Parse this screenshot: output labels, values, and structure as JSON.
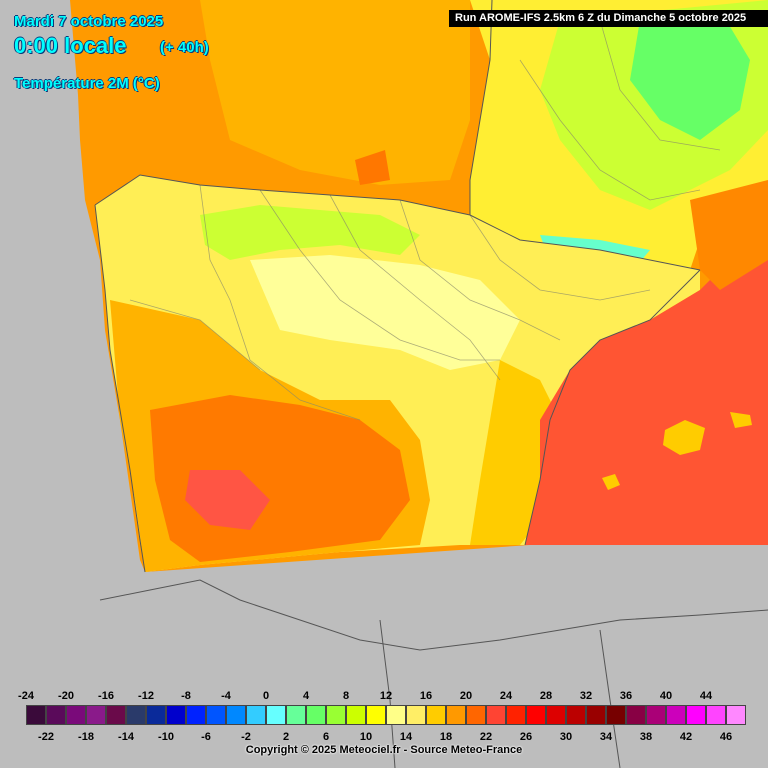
{
  "header": {
    "date": "Mardi 7 octobre 2025",
    "time": "0:00 locale",
    "lead": "(+ 40h)",
    "parameter": "Température 2M (°C)"
  },
  "run_info": "Run AROME-IFS 2.5km 6 Z du Dimanche 5 octobre 2025",
  "legend": {
    "top_labels": [
      "-24",
      "-20",
      "-16",
      "-12",
      "-8",
      "-4",
      "0",
      "4",
      "8",
      "12",
      "16",
      "20",
      "24",
      "28",
      "32",
      "36",
      "40",
      "44"
    ],
    "bottom_labels": [
      "-22",
      "-18",
      "-14",
      "-10",
      "-6",
      "-2",
      "2",
      "6",
      "10",
      "14",
      "18",
      "22",
      "26",
      "30",
      "34",
      "38",
      "42",
      "46"
    ],
    "colors": [
      "#3a0a3a",
      "#5a0a5a",
      "#7a0a7a",
      "#8a1a8a",
      "#6a0a4a",
      "#2a3a6a",
      "#0a2a9a",
      "#0000cc",
      "#0022ff",
      "#0055ff",
      "#0088ff",
      "#33ccff",
      "#66ffff",
      "#66ff99",
      "#66ff66",
      "#99ff33",
      "#ccff00",
      "#ffff00",
      "#ffff88",
      "#ffee66",
      "#ffcc00",
      "#ff9900",
      "#ff6600",
      "#ff4433",
      "#ff2200",
      "#ff0000",
      "#dd0000",
      "#bb0000",
      "#990000",
      "#770000",
      "#880044",
      "#aa0077",
      "#cc00bb",
      "#ff00ff",
      "#ff44ff",
      "#ff88ff"
    ]
  },
  "copyright": "Copyright © 2025 Meteociel.fr - Source Meteo-France",
  "colors": {
    "sea_atlantic": "#ff9a00",
    "sea_mediterranean": "#ff5533",
    "outside_domain": "#bdbdbd",
    "title_text": "#00ffff"
  }
}
